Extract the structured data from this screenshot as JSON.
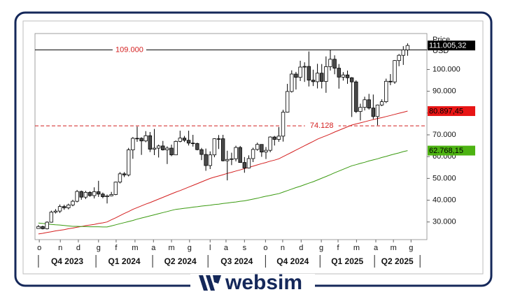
{
  "chart_data": {
    "type": "candlestick",
    "axis_title": "Price",
    "axis_unit": "USD",
    "xlim": [
      -0.8,
      90.5
    ],
    "xticks": [
      {
        "value": 0.2,
        "label": "o"
      },
      {
        "value": 5.1,
        "label": "n"
      },
      {
        "value": 9.3,
        "label": "d"
      },
      {
        "value": 14.0,
        "label": "g"
      },
      {
        "value": 18.1,
        "label": "f"
      },
      {
        "value": 22.5,
        "label": "m"
      },
      {
        "value": 26.8,
        "label": "a"
      },
      {
        "value": 31.0,
        "label": "m"
      },
      {
        "value": 35.2,
        "label": "g"
      },
      {
        "value": 40.0,
        "label": "l"
      },
      {
        "value": 43.7,
        "label": "a"
      },
      {
        "value": 48.0,
        "label": "s"
      },
      {
        "value": 52.9,
        "label": "o"
      },
      {
        "value": 56.9,
        "label": "n"
      },
      {
        "value": 61.2,
        "label": "d"
      },
      {
        "value": 65.9,
        "label": "g"
      },
      {
        "value": 69.8,
        "label": "f"
      },
      {
        "value": 74.1,
        "label": "m"
      },
      {
        "value": 78.6,
        "label": "a"
      },
      {
        "value": 82.7,
        "label": "m"
      },
      {
        "value": 86.8,
        "label": "g"
      }
    ],
    "quarters": [
      "Q4 2023",
      "Q1 2024",
      "Q2 2024",
      "Q3 2024",
      "Q4 2024",
      "Q1 2025",
      "Q2 2025"
    ],
    "quarter_bounds": [
      0,
      13.4,
      26.6,
      39.5,
      52.9,
      65.6,
      78.3,
      88.9
    ],
    "ylim": [
      21900,
      116500
    ],
    "yticks": [
      {
        "value": 30000,
        "label": "30.000"
      },
      {
        "value": 40000,
        "label": "40.000"
      },
      {
        "value": 50000,
        "label": "50.000"
      },
      {
        "value": 60000,
        "label": "60.000"
      },
      {
        "value": 70000,
        "label": "70.000"
      },
      {
        "value": 80000,
        "label": "80.000"
      },
      {
        "value": 90000,
        "label": "90.000"
      },
      {
        "value": 100000,
        "label": "100.000"
      }
    ],
    "open": [
      27000,
      27900,
      26900,
      29900,
      34500,
      35000,
      37100,
      36500,
      37800,
      39500,
      44000,
      41400,
      43600,
      42100,
      43900,
      42800,
      41600,
      42000,
      42600,
      48300,
      52100,
      51600,
      63100,
      68400,
      68400,
      67200,
      69600,
      63400,
      63900,
      64900,
      63100,
      63900,
      60800,
      67000,
      68500,
      67500,
      66200,
      66000,
      63200,
      61000,
      55900,
      60800,
      68200,
      68200,
      58100,
      58700,
      59000,
      64200,
      57300,
      54800,
      59100,
      63300,
      65600,
      62100,
      62900,
      69000,
      67900,
      69400,
      80400,
      89900,
      97900,
      96400,
      101100,
      101400,
      95100,
      94400,
      98300,
      94500,
      101300,
      104700,
      100600,
      96500,
      97500,
      96200,
      94300,
      80700,
      82600,
      86100,
      82300,
      78400,
      83700,
      85200,
      94600,
      94300,
      104100,
      106500,
      109000
    ],
    "high": [
      28600,
      28300,
      30300,
      35200,
      35900,
      38000,
      37900,
      38400,
      40200,
      44700,
      44400,
      44300,
      44100,
      45900,
      48900,
      43500,
      42600,
      43800,
      48500,
      52900,
      52900,
      64000,
      69000,
      73800,
      68900,
      71700,
      71300,
      72700,
      65500,
      67200,
      64700,
      65500,
      67400,
      71900,
      69500,
      71900,
      70000,
      66400,
      64000,
      63700,
      62400,
      68400,
      69900,
      70000,
      62700,
      61800,
      65000,
      64900,
      59800,
      60600,
      64100,
      66400,
      65600,
      64400,
      69300,
      69500,
      73600,
      81500,
      93400,
      99600,
      98900,
      104000,
      103300,
      108300,
      99900,
      102600,
      102500,
      106000,
      109100,
      106500,
      102500,
      98800,
      99500,
      96500,
      95000,
      84300,
      87500,
      88800,
      88500,
      83900,
      86300,
      95800,
      97900,
      104300,
      107100,
      110700,
      112000
    ],
    "low": [
      26900,
      26600,
      26600,
      29700,
      33900,
      34100,
      35600,
      35800,
      37200,
      39000,
      40200,
      40500,
      41600,
      40800,
      41500,
      40900,
      38500,
      41800,
      42300,
      47700,
      50600,
      50900,
      59000,
      66800,
      60800,
      66600,
      62100,
      60700,
      59600,
      62800,
      56600,
      60200,
      60700,
      66600,
      66700,
      65100,
      64600,
      62900,
      58400,
      53500,
      54300,
      59700,
      63500,
      57800,
      49100,
      56100,
      57800,
      57200,
      52600,
      54600,
      57500,
      62700,
      59900,
      58900,
      62000,
      65100,
      66800,
      66900,
      80200,
      89400,
      90800,
      94700,
      94300,
      92200,
      92400,
      91300,
      91300,
      89300,
      99500,
      97800,
      91200,
      94900,
      93400,
      78200,
      80000,
      76600,
      81200,
      81600,
      77200,
      74400,
      83200,
      84600,
      92800,
      93400,
      101500,
      102100,
      106300
    ],
    "close": [
      27900,
      26900,
      29900,
      34500,
      35000,
      37100,
      36500,
      37800,
      39500,
      44000,
      41400,
      43600,
      42100,
      43900,
      42800,
      41600,
      42000,
      42600,
      48300,
      52100,
      51600,
      63100,
      68400,
      68400,
      67200,
      69600,
      63400,
      63900,
      64900,
      63100,
      63900,
      60800,
      67000,
      68500,
      67500,
      66200,
      66000,
      63200,
      61000,
      55900,
      60800,
      68200,
      68200,
      58100,
      58700,
      59000,
      64200,
      57300,
      54800,
      59100,
      63300,
      65600,
      62100,
      62900,
      69000,
      67900,
      69400,
      80400,
      89900,
      97900,
      96400,
      101100,
      101400,
      95100,
      94400,
      98300,
      94500,
      101300,
      104700,
      100600,
      96500,
      97500,
      96200,
      94300,
      80700,
      82600,
      86100,
      82300,
      78400,
      83700,
      85200,
      94600,
      94300,
      104100,
      106500,
      109000,
      111005.32
    ],
    "close_label": "111.005,32",
    "up_color": "#ffffff",
    "down_color": "#4a4a4a",
    "moving_averages": [
      {
        "color": "#d42020",
        "last_label": "80.897,45",
        "values": [
          24500,
          24800,
          25200,
          25500,
          25900,
          26200,
          26500,
          26900,
          27200,
          27600,
          27900,
          28300,
          28600,
          28900,
          29300,
          29600,
          30000,
          31000,
          31900,
          32900,
          33900,
          34800,
          35800,
          36600,
          37400,
          38200,
          38900,
          39700,
          40500,
          41300,
          42100,
          42900,
          43700,
          44400,
          45200,
          46000,
          46800,
          47600,
          48400,
          49200,
          50000,
          50600,
          51100,
          51700,
          52300,
          52800,
          53400,
          53900,
          54500,
          55100,
          55600,
          56200,
          56800,
          57300,
          57900,
          58400,
          59000,
          60000,
          61000,
          62000,
          63000,
          64000,
          65000,
          66000,
          67000,
          68000,
          68800,
          69600,
          70400,
          71300,
          72100,
          72900,
          73700,
          74500,
          75000,
          75500,
          76000,
          76500,
          77000,
          77500,
          77900,
          78400,
          78900,
          79400,
          79900,
          80400,
          80897.45
        ]
      },
      {
        "color": "#3a9a10",
        "last_label": "62.768,15",
        "values": [
          29500,
          29300,
          29100,
          28900,
          28700,
          28600,
          28400,
          28200,
          28000,
          28000,
          27900,
          27900,
          27800,
          27800,
          27800,
          27700,
          27700,
          28200,
          28700,
          29200,
          29700,
          30200,
          30700,
          31300,
          31800,
          32300,
          32800,
          33300,
          33800,
          34300,
          34800,
          35300,
          35800,
          36000,
          36300,
          36500,
          36800,
          37000,
          37300,
          37500,
          37700,
          38000,
          38200,
          38500,
          38700,
          39000,
          39200,
          39500,
          39700,
          40100,
          40500,
          40900,
          41400,
          41800,
          42200,
          42600,
          43000,
          43700,
          44400,
          45100,
          45800,
          46400,
          47100,
          47800,
          48500,
          49300,
          50100,
          50900,
          51700,
          52600,
          53400,
          54200,
          55000,
          55800,
          56300,
          56900,
          57400,
          58000,
          58500,
          59000,
          59600,
          60100,
          60700,
          61200,
          61700,
          62300,
          62768.15
        ]
      }
    ],
    "hlines": [
      {
        "value": 109000,
        "label": "109.000",
        "color": "#000000",
        "label_color": "#d42020",
        "dashed": false
      },
      {
        "value": 74128,
        "label": "74.128",
        "color": "#d42020",
        "label_color": "#d42020",
        "dashed": true
      }
    ]
  },
  "branding": "websim"
}
